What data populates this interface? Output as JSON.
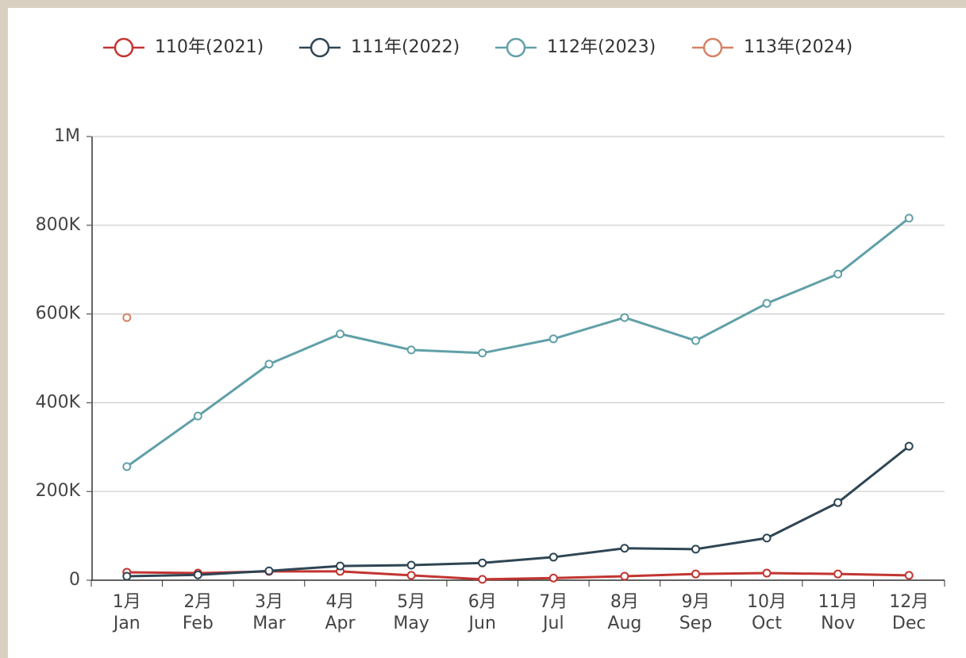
{
  "chart_data": {
    "type": "line",
    "categories": [
      [
        "1月",
        "Jan"
      ],
      [
        "2月",
        "Feb"
      ],
      [
        "3月",
        "Mar"
      ],
      [
        "4月",
        "Apr"
      ],
      [
        "5月",
        "May"
      ],
      [
        "6月",
        "Jun"
      ],
      [
        "7月",
        "Jul"
      ],
      [
        "8月",
        "Aug"
      ],
      [
        "9月",
        "Sep"
      ],
      [
        "10月",
        "Oct"
      ],
      [
        "11月",
        "Nov"
      ],
      [
        "12月",
        "Dec"
      ]
    ],
    "series": [
      {
        "name": "110年(2021)",
        "color": "#c23531",
        "values": [
          18000,
          16000,
          20000,
          20000,
          11000,
          2000,
          5000,
          9000,
          14000,
          16000,
          14000,
          11000
        ]
      },
      {
        "name": "111年(2022)",
        "color": "#2f4554",
        "values": [
          9000,
          12000,
          21000,
          32000,
          34000,
          39000,
          52000,
          72000,
          70000,
          95000,
          175000,
          302000
        ]
      },
      {
        "name": "112年(2023)",
        "color": "#61a0a8",
        "values": [
          256000,
          370000,
          487000,
          555000,
          519000,
          512000,
          544000,
          592000,
          540000,
          624000,
          690000,
          816000
        ]
      },
      {
        "name": "113年(2024)",
        "color": "#d48265",
        "values": [
          592000,
          null,
          null,
          null,
          null,
          null,
          null,
          null,
          null,
          null,
          null,
          null
        ]
      }
    ],
    "ylim": [
      0,
      1000000
    ],
    "yticks": [
      0,
      {
        "value": 200000,
        "label": "200K"
      },
      {
        "value": 400000,
        "label": "400K"
      },
      {
        "value": 600000,
        "label": "600K"
      },
      {
        "value": 800000,
        "label": "800K"
      },
      {
        "value": 1000000,
        "label": "1M"
      }
    ],
    "grid": true,
    "legend": "top"
  }
}
